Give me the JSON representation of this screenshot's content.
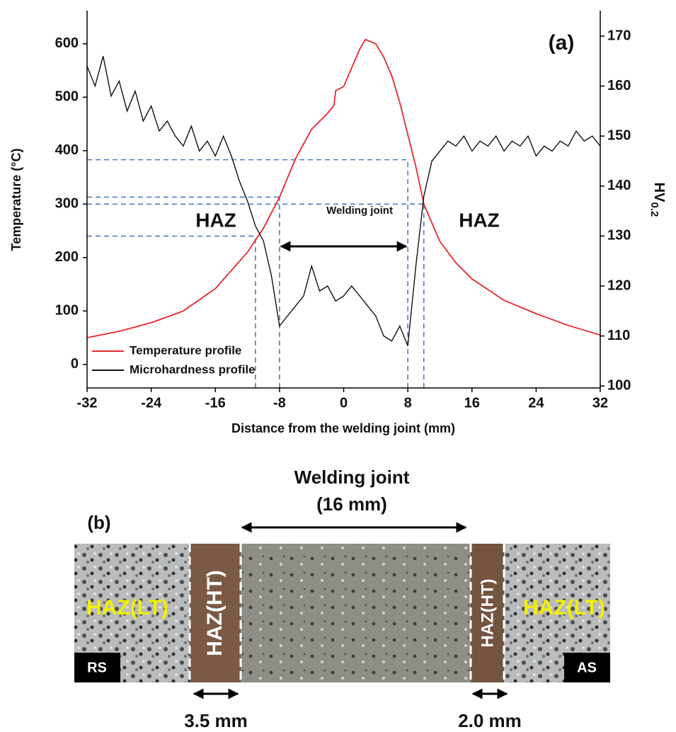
{
  "chart_data": {
    "type": "line",
    "xlabel": "Distance from the welding joint (mm)",
    "ylabel": "Temperature (°C)",
    "y2label": "HV",
    "y2label_sub": "0.2",
    "panel_label": "(a)",
    "xlim": [
      -32,
      32
    ],
    "xticks": [
      -32,
      -24,
      -16,
      -8,
      0,
      8,
      16,
      24,
      32
    ],
    "ylim": [
      -44,
      662
    ],
    "yticks": [
      0,
      100,
      200,
      300,
      400,
      500,
      600
    ],
    "y2lim": [
      99.6,
      175.1
    ],
    "y2ticks": [
      100,
      110,
      120,
      130,
      140,
      150,
      160,
      170
    ],
    "legend": "lower left",
    "series": [
      {
        "name": "Temperature profile",
        "color": "#e8282b",
        "x": [
          -32,
          -28,
          -24,
          -20,
          -16,
          -12,
          -10,
          -8,
          -6,
          -4,
          -2,
          -1.2,
          -1,
          0,
          1,
          2,
          2.7,
          4,
          5,
          6,
          7,
          8,
          9,
          10,
          12,
          14,
          16,
          20,
          24,
          28,
          32
        ],
        "values": [
          50,
          62,
          78,
          100,
          142,
          210,
          255,
          313,
          385,
          440,
          470,
          485,
          512,
          520,
          555,
          590,
          608,
          600,
          575,
          540,
          490,
          430,
          370,
          300,
          230,
          190,
          160,
          120,
          95,
          73,
          55
        ]
      },
      {
        "name": "Microhardness profile",
        "color": "#111111",
        "axis": "y2",
        "x": [
          -32,
          -31,
          -30,
          -29,
          -28,
          -27,
          -26,
          -25,
          -24,
          -23,
          -22,
          -21,
          -20,
          -19,
          -18,
          -17,
          -16,
          -15,
          -14,
          -13,
          -12,
          -11,
          -10,
          -9,
          -8,
          -7,
          -6,
          -5,
          -4,
          -3,
          -2,
          -1,
          0,
          1,
          2,
          3,
          4,
          5,
          6,
          7,
          8,
          9,
          10,
          11,
          12,
          13,
          14,
          15,
          16,
          17,
          18,
          19,
          20,
          21,
          22,
          23,
          24,
          25,
          26,
          27,
          28,
          29,
          30,
          31,
          32
        ],
        "values": [
          164,
          160,
          166,
          158,
          161,
          155,
          159,
          153,
          156,
          151,
          153,
          150,
          148,
          152,
          147,
          149,
          146,
          150,
          146,
          141,
          137,
          132,
          129,
          122,
          112,
          114,
          116,
          118,
          124,
          119,
          120,
          117,
          118,
          120,
          118,
          116,
          114,
          110,
          109,
          112,
          108,
          124,
          138,
          145,
          147,
          149,
          148,
          150,
          147,
          149,
          148,
          150,
          147,
          149,
          148,
          150,
          146,
          148,
          147,
          149,
          148,
          151,
          149,
          150,
          148
        ]
      }
    ],
    "reference_lines": [
      {
        "x": -11,
        "y": 240
      },
      {
        "x": -8,
        "y": 313
      },
      {
        "x": 8,
        "y": 383
      },
      {
        "x": 10,
        "y": 300
      }
    ],
    "annotations": [
      "HAZ",
      "Welding joint",
      "HAZ"
    ]
  },
  "panel_b": {
    "label": "(b)",
    "title": "Welding joint",
    "subtitle": "(16 mm)",
    "zones": [
      "HAZ(LT)",
      "HAZ(HT)",
      "HAZ(HT)",
      "HAZ(LT)"
    ],
    "sides": [
      "RS",
      "AS"
    ],
    "widths": [
      "3.5 mm",
      "2.0 mm"
    ]
  }
}
